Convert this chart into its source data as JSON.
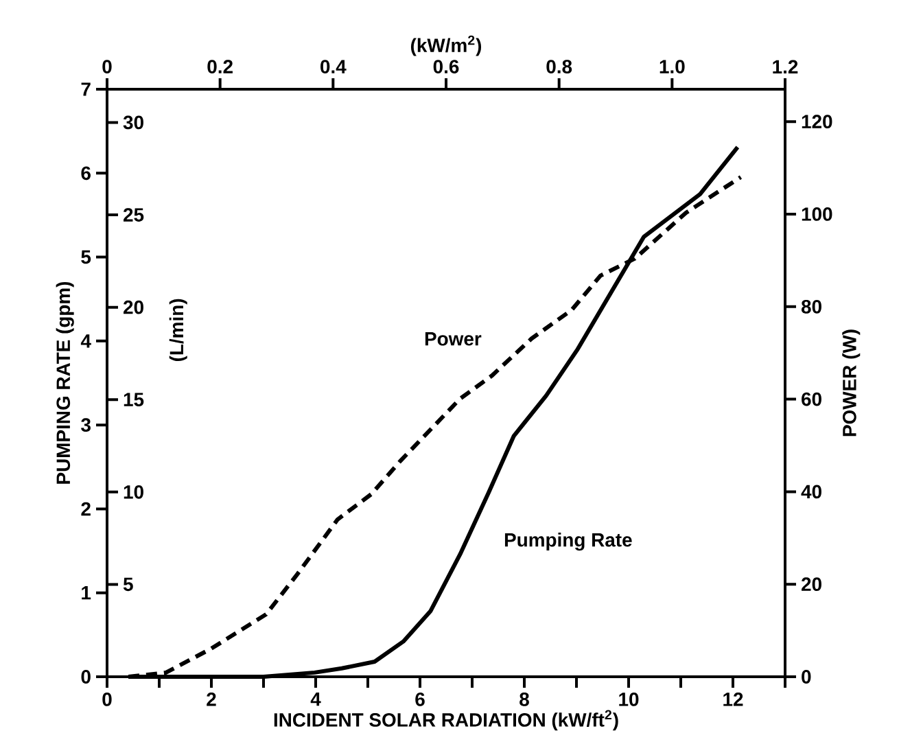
{
  "chart_data": {
    "type": "line",
    "xlabel": "INCIDENT SOLAR RADIATION (kW/ft$^{2}$)",
    "x2label": "(kW/m$^{2}$)",
    "ylabel": "PUMPING RATE (gpm)",
    "y2label": "POWER (W)",
    "y3label": "(L/min)",
    "xlim": [
      0,
      13
    ],
    "xticks": [
      0,
      {
        "value": 1,
        "label": null
      },
      2,
      {
        "value": 3,
        "label": null
      },
      4,
      {
        "value": 5,
        "label": null
      },
      6,
      {
        "value": 7,
        "label": null
      },
      8,
      {
        "value": 9,
        "label": null
      },
      10,
      {
        "value": 11,
        "label": null
      },
      12,
      {
        "value": 13,
        "label": null
      }
    ],
    "x2lim": [
      0,
      1.2
    ],
    "x2ticks": [
      0,
      0.2,
      0.4,
      0.6,
      0.8,
      {
        "value": 1,
        "label": "1.0"
      },
      1.2
    ],
    "ylim": [
      0,
      7
    ],
    "yticks": [
      0,
      1,
      2,
      3,
      4,
      5,
      6,
      7
    ],
    "y2lim": [
      0,
      127
    ],
    "y2ticks": [
      0,
      20,
      40,
      60,
      80,
      100,
      120
    ],
    "y3lim": [
      0,
      31.8
    ],
    "y3ticks": [
      5,
      10,
      15,
      20,
      25,
      30
    ],
    "series": [
      {
        "name": "Pumping Rate",
        "color": "#000000",
        "line_style": "solid",
        "x": [
          0.41,
          3.0,
          3.98,
          4.5,
          5.13,
          5.68,
          6.2,
          6.77,
          7.32,
          7.8,
          8.42,
          9.02,
          10.29,
          11.37,
          12.09
        ],
        "values": [
          0,
          0,
          0.05,
          0.1,
          0.18,
          0.42,
          0.78,
          1.46,
          2.2,
          2.87,
          3.35,
          3.9,
          5.24,
          5.75,
          6.31
        ]
      },
      {
        "name": "Power",
        "color": "#000000",
        "line_style": "dashed",
        "axis": "y2",
        "x": [
          0.41,
          1.13,
          2.0,
          3.05,
          3.65,
          4.42,
          5.07,
          5.62,
          6.77,
          7.38,
          8.14,
          8.91,
          9.46,
          10.12,
          11.1,
          12.15
        ],
        "values": [
          0,
          0.9,
          6.1,
          13.5,
          22.2,
          34,
          39.5,
          46.6,
          60.1,
          65.1,
          73.1,
          79.3,
          86.7,
          90.4,
          100.3,
          108
        ]
      }
    ]
  }
}
